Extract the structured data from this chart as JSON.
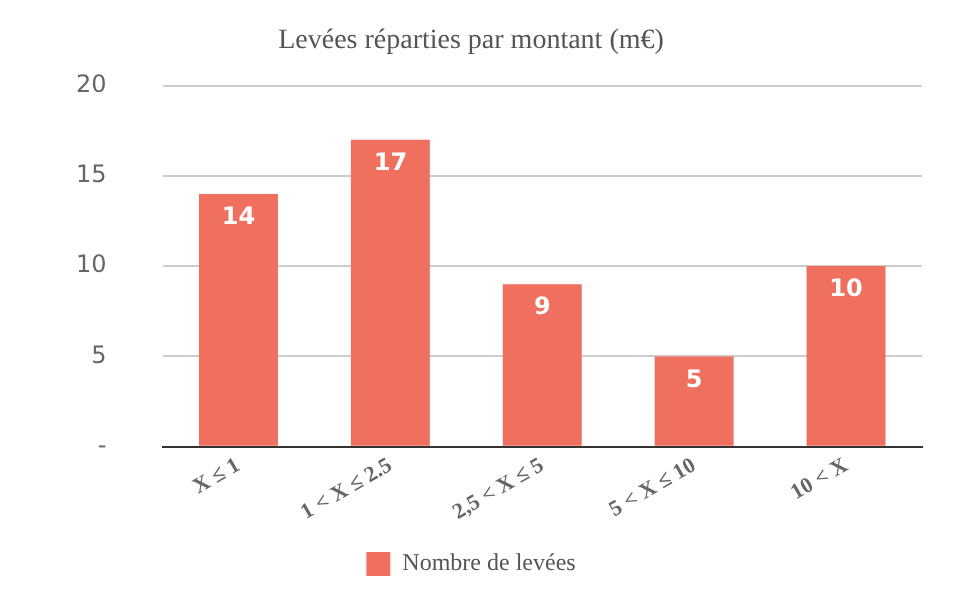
{
  "chart_data": {
    "type": "bar",
    "title": "Levées réparties par montant (m€)",
    "categories": [
      "X ≤ 1",
      "1 < X ≤ 2.5",
      "2,5 < X ≤ 5",
      "5 < X ≤ 10",
      "10 < X"
    ],
    "series": [
      {
        "name": "Nombre de levées",
        "color": "#f07060",
        "values": [
          14,
          17,
          9,
          5,
          10
        ]
      }
    ],
    "ylim": [
      0,
      20
    ],
    "yticks": [
      {
        "value": 0,
        "label": "-"
      },
      5,
      10,
      15,
      20
    ],
    "grid": "y",
    "legend": "bottom",
    "data_labels": true
  }
}
